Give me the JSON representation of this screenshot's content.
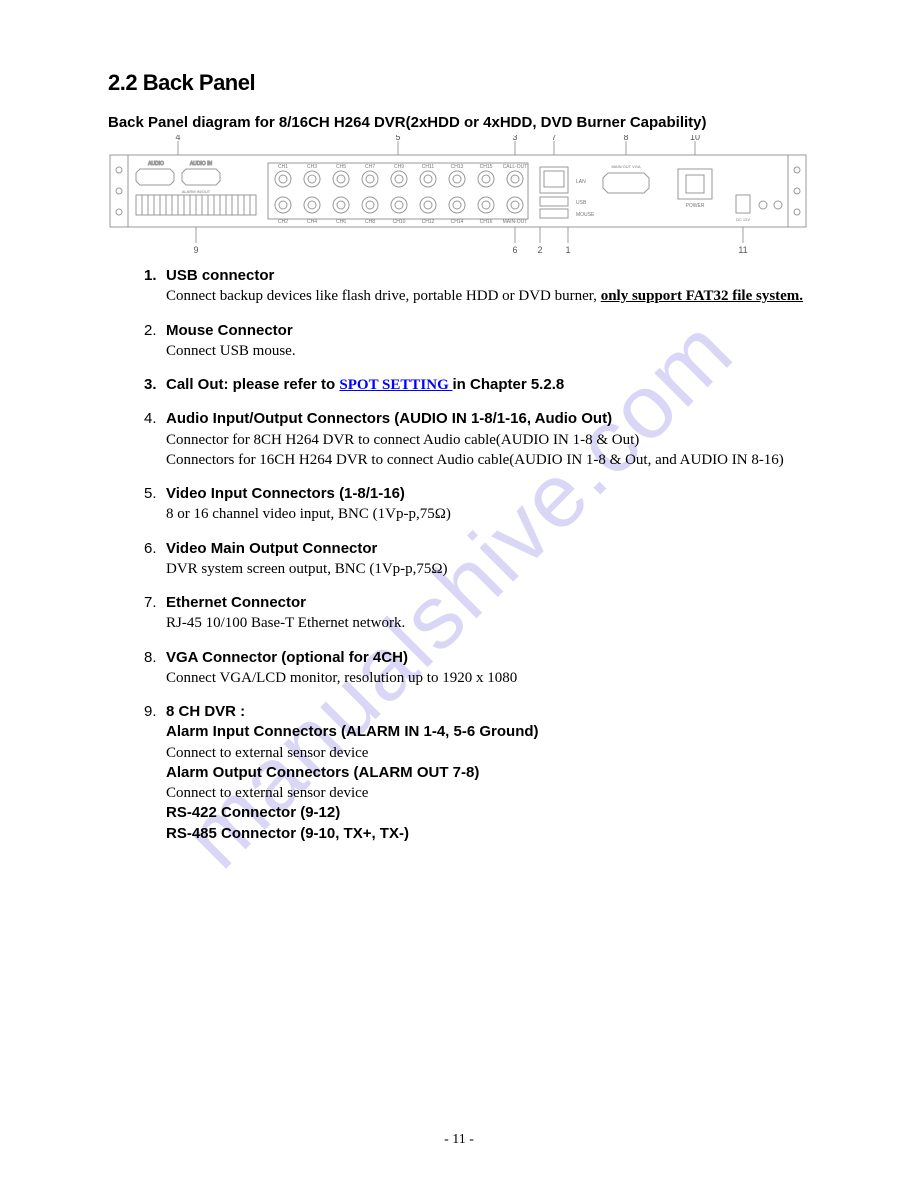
{
  "watermark": "manualshive.com",
  "section_title": "2.2 Back Panel",
  "diagram_caption": "Back Panel diagram for 8/16CH H264 DVR(2xHDD or 4xHDD, DVD Burner Capability)",
  "page_number": "- 11 -",
  "colors": {
    "link_color": "#0000ff",
    "watermark_color": "rgba(120,110,220,0.28)",
    "text_color": "#000000",
    "diagram_line": "#888888"
  },
  "diagram": {
    "callouts_top": [
      "4",
      "5",
      "3",
      "7",
      "8",
      "10"
    ],
    "callouts_bottom": [
      "9",
      "6",
      "2",
      "1",
      "11"
    ],
    "ch_labels_top": [
      "CH1",
      "CH3",
      "CH5",
      "CH7",
      "CH9",
      "CH11",
      "CH13",
      "CH15",
      "CALL-OUT"
    ],
    "ch_labels_bottom": [
      "CH2",
      "CH4",
      "CH6",
      "CH8",
      "CH10",
      "CH12",
      "CH14",
      "CH16",
      "MAIN-OUT"
    ],
    "port_labels": [
      "LAN",
      "USB",
      "MOUSE"
    ],
    "vga_label": "MAIN OUT VGA",
    "power_label": "POWER",
    "dc_label": "DC 12V",
    "left_label1": "AUDIO",
    "left_label2": "IN & OUT/IN",
    "left_label3": "AUDIO IN",
    "alarm_label": "ALARM IN/OUT"
  },
  "items": [
    {
      "num": "1.",
      "num_bold": true,
      "title": "USB  connector",
      "lines": [
        {
          "t": "serif",
          "text_a": "Connect backup devices like flash drive, portable HDD or DVD burner, ",
          "text_b": "only support FAT32 file system."
        }
      ]
    },
    {
      "num": "2.",
      "title": "Mouse Connector",
      "lines": [
        {
          "t": "serif",
          "text": "Connect USB mouse."
        }
      ]
    },
    {
      "num": "3.",
      "num_bold": true,
      "title_prefix": "Call Out: please refer to ",
      "link_text": "SPOT SETTING ",
      "title_suffix": "in Chapter 5.2.8",
      "lines": []
    },
    {
      "num": "4.",
      "title": "Audio Input/Output Connectors (AUDIO IN 1-8/1-16, Audio Out)",
      "lines": [
        {
          "t": "serif",
          "text": "Connector for 8CH H264 DVR to connect Audio cable(AUDIO IN 1-8 & Out)"
        },
        {
          "t": "serif",
          "text": "Connectors for 16CH H264 DVR to connect Audio cable(AUDIO IN 1-8 & Out, and AUDIO IN 8-16)"
        }
      ]
    },
    {
      "num": "5.",
      "title": "Video Input Connectors (1-8/1-16)",
      "lines": [
        {
          "t": "serif",
          "text": "8 or 16 channel video input, BNC (1Vp-p,75Ω)"
        }
      ]
    },
    {
      "num": "6.",
      "title": "Video Main Output Connector",
      "lines": [
        {
          "t": "serif",
          "text": "DVR system screen output, BNC (1Vp-p,75Ω)"
        }
      ]
    },
    {
      "num": "7.",
      "title": "Ethernet Connector",
      "lines": [
        {
          "t": "serif",
          "text": "RJ-45 10/100 Base-T Ethernet network."
        }
      ]
    },
    {
      "num": "8.",
      "title": "VGA Connector (optional for 4CH)",
      "lines": [
        {
          "t": "serif",
          "text": "Connect VGA/LCD monitor, resolution up to 1920 x 1080"
        }
      ]
    },
    {
      "num": "9.",
      "title": "8 CH DVR :",
      "lines": [
        {
          "t": "sans_bold",
          "text": "Alarm Input Connectors (ALARM IN 1-4, 5-6 Ground)"
        },
        {
          "t": "serif",
          "text": "Connect to external sensor device"
        },
        {
          "t": "sans_bold",
          "text": "Alarm Output Connectors (ALARM OUT 7-8)"
        },
        {
          "t": "serif",
          "text": "Connect to external sensor device"
        },
        {
          "t": "sans_bold",
          "text": "RS-422 Connector (9-12)"
        },
        {
          "t": "sans_bold",
          "text": "RS-485 Connector (9-10, TX+, TX-)"
        }
      ]
    }
  ]
}
